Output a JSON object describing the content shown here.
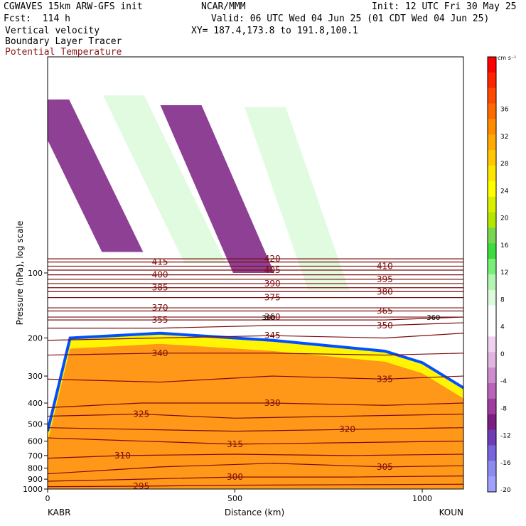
{
  "header": {
    "model": "CGWAVES 15km ARW-GFS init",
    "fcst": "Fcst:  114 h",
    "org": "NCAR/MMM",
    "init": "Init: 12 UTC Fri 30 May 25",
    "valid": "Valid: 06 UTC Wed 04 Jun 25 (01 CDT Wed 04 Jun 25)",
    "xy": "XY= 187.4,173.8 to 191.8,100.1",
    "fields": [
      "Vertical velocity",
      "Boundary Layer Tracer",
      "Potential Temperature"
    ]
  },
  "chart_data": {
    "type": "heatmap",
    "title": "",
    "xlabel": "Distance (km)",
    "ylabel": "Pressure (hPa), log scale",
    "x_ticks": [
      0,
      500,
      1000
    ],
    "xlim": [
      0,
      1110
    ],
    "y_ticks": [
      100,
      200,
      300,
      400,
      500,
      600,
      700,
      800,
      900,
      1000
    ],
    "ylim": [
      1000,
      10
    ],
    "y_scale": "log",
    "x_endpoints": {
      "left": "KABR",
      "right": "KOUN"
    },
    "colorbar": {
      "units": "cm s⁻¹",
      "labels": [
        36,
        32,
        28,
        24,
        20,
        16,
        12,
        8,
        4,
        0,
        -4,
        -8,
        -12,
        -16,
        -20
      ],
      "colors": [
        "#ff0000",
        "#ff2400",
        "#ff4800",
        "#ff6a00",
        "#ff8c00",
        "#ffaa00",
        "#ffc800",
        "#ffe600",
        "#ffff00",
        "#d8f000",
        "#b4e600",
        "#78d750",
        "#3cdc3c",
        "#78f078",
        "#b4f5b4",
        "#dcfadc",
        "#ffffff",
        "#ffffff",
        "#f0d2f0",
        "#e1b4e1",
        "#cd8ccd",
        "#b964b9",
        "#a03ca0",
        "#7a1e82",
        "#6e3cb4",
        "#7864dc",
        "#8c8cf0",
        "#a0a0ff"
      ]
    },
    "theta_contours": [
      {
        "label": "295",
        "points": [
          [
            0,
            975
          ],
          [
            250,
            970
          ],
          [
            500,
            960
          ],
          [
            800,
            955
          ],
          [
            1110,
            950
          ]
        ]
      },
      {
        "label": "300",
        "points": [
          [
            0,
            920
          ],
          [
            250,
            900
          ],
          [
            500,
            880
          ],
          [
            800,
            880
          ],
          [
            1110,
            870
          ]
        ]
      },
      {
        "label": "305",
        "points": [
          [
            0,
            850
          ],
          [
            300,
            790
          ],
          [
            600,
            760
          ],
          [
            900,
            790
          ],
          [
            1110,
            780
          ]
        ]
      },
      {
        "label": "310",
        "points": [
          [
            0,
            720
          ],
          [
            200,
            700
          ],
          [
            500,
            690
          ],
          [
            800,
            700
          ],
          [
            1110,
            690
          ]
        ]
      },
      {
        "label": "315",
        "points": [
          [
            0,
            580
          ],
          [
            250,
            600
          ],
          [
            500,
            620
          ],
          [
            800,
            610
          ],
          [
            1110,
            600
          ]
        ]
      },
      {
        "label": "320",
        "points": [
          [
            0,
            520
          ],
          [
            250,
            530
          ],
          [
            500,
            540
          ],
          [
            800,
            530
          ],
          [
            1110,
            520
          ]
        ]
      },
      {
        "label": "325",
        "points": [
          [
            0,
            460
          ],
          [
            250,
            450
          ],
          [
            500,
            470
          ],
          [
            800,
            460
          ],
          [
            1110,
            450
          ]
        ]
      },
      {
        "label": "330",
        "points": [
          [
            0,
            420
          ],
          [
            250,
            400
          ],
          [
            600,
            400
          ],
          [
            900,
            410
          ],
          [
            1110,
            400
          ]
        ]
      },
      {
        "label": "335",
        "points": [
          [
            0,
            310
          ],
          [
            300,
            320
          ],
          [
            600,
            300
          ],
          [
            900,
            310
          ],
          [
            1110,
            300
          ]
        ]
      },
      {
        "label": "340",
        "points": [
          [
            0,
            240
          ],
          [
            300,
            235
          ],
          [
            600,
            235
          ],
          [
            900,
            240
          ],
          [
            1110,
            235
          ]
        ]
      },
      {
        "label": "345",
        "points": [
          [
            0,
            205
          ],
          [
            300,
            200
          ],
          [
            600,
            195
          ],
          [
            900,
            200
          ],
          [
            1110,
            190
          ]
        ]
      },
      {
        "label": "350",
        "points": [
          [
            0,
            180
          ],
          [
            300,
            180
          ],
          [
            600,
            175
          ],
          [
            900,
            175
          ],
          [
            1110,
            170
          ]
        ]
      },
      {
        "label": "355",
        "points": [
          [
            0,
            165
          ],
          [
            300,
            165
          ],
          [
            600,
            165
          ],
          [
            900,
            165
          ],
          [
            1110,
            160
          ]
        ]
      },
      {
        "label": "360",
        "points": [
          [
            0,
            160
          ],
          [
            300,
            160
          ],
          [
            600,
            160
          ],
          [
            900,
            160
          ],
          [
            1110,
            160
          ]
        ]
      },
      {
        "label": "365",
        "points": [
          [
            0,
            150
          ],
          [
            300,
            150
          ],
          [
            600,
            150
          ],
          [
            900,
            150
          ],
          [
            1110,
            150
          ]
        ]
      },
      {
        "label": "370",
        "points": [
          [
            0,
            145
          ],
          [
            300,
            145
          ],
          [
            600,
            145
          ],
          [
            900,
            145
          ],
          [
            1110,
            145
          ]
        ]
      },
      {
        "label": "375",
        "points": [
          [
            0,
            130
          ],
          [
            300,
            130
          ],
          [
            600,
            130
          ],
          [
            900,
            130
          ],
          [
            1110,
            130
          ]
        ]
      },
      {
        "label": "380",
        "points": [
          [
            0,
            122
          ],
          [
            300,
            122
          ],
          [
            600,
            122
          ],
          [
            900,
            122
          ],
          [
            1110,
            122
          ]
        ]
      },
      {
        "label": "385",
        "points": [
          [
            0,
            117
          ],
          [
            300,
            117
          ],
          [
            600,
            117
          ],
          [
            900,
            117
          ],
          [
            1110,
            117
          ]
        ]
      },
      {
        "label": "390",
        "points": [
          [
            0,
            112
          ],
          [
            300,
            112
          ],
          [
            600,
            112
          ],
          [
            900,
            112
          ],
          [
            1110,
            112
          ]
        ]
      },
      {
        "label": "395",
        "points": [
          [
            0,
            107
          ],
          [
            300,
            107
          ],
          [
            600,
            107
          ],
          [
            900,
            107
          ],
          [
            1110,
            107
          ]
        ]
      },
      {
        "label": "400",
        "points": [
          [
            0,
            102
          ],
          [
            300,
            102
          ],
          [
            600,
            102
          ],
          [
            900,
            102
          ],
          [
            1110,
            102
          ]
        ]
      },
      {
        "label": "405",
        "points": [
          [
            0,
            97
          ],
          [
            300,
            97
          ],
          [
            600,
            97
          ],
          [
            900,
            97
          ],
          [
            1110,
            97
          ]
        ]
      },
      {
        "label": "410",
        "points": [
          [
            0,
            93
          ],
          [
            300,
            93
          ],
          [
            600,
            93
          ],
          [
            900,
            93
          ],
          [
            1110,
            93
          ]
        ]
      },
      {
        "label": "415",
        "points": [
          [
            0,
            89
          ],
          [
            300,
            89
          ],
          [
            600,
            89
          ],
          [
            900,
            89
          ],
          [
            1110,
            89
          ]
        ]
      },
      {
        "label": "420",
        "points": [
          [
            0,
            86
          ],
          [
            300,
            86
          ],
          [
            600,
            86
          ],
          [
            900,
            86
          ],
          [
            1110,
            86
          ]
        ]
      }
    ],
    "tracer_boundary_layer": [
      [
        0,
        540
      ],
      [
        60,
        200
      ],
      [
        300,
        190
      ],
      [
        600,
        205
      ],
      [
        900,
        230
      ],
      [
        1000,
        260
      ],
      [
        1110,
        340
      ]
    ],
    "velocity_bands": [
      {
        "value": -8,
        "center_x": 200,
        "p_top": 15,
        "p_bot": 80,
        "slope_km_per_decade": 280
      },
      {
        "value": 8,
        "center_x": 420,
        "p_top": 15,
        "p_bot": 90,
        "slope_km_per_decade": 280
      },
      {
        "value": -8,
        "center_x": 550,
        "p_top": 15,
        "p_bot": 100,
        "slope_km_per_decade": 250
      },
      {
        "value": 8,
        "center_x": 750,
        "p_top": 15,
        "p_bot": 120,
        "slope_km_per_decade": 200
      }
    ],
    "annotations": [
      {
        "text": "360",
        "x": 590,
        "p": 160
      },
      {
        "text": "360",
        "x": 1030,
        "p": 160
      }
    ]
  }
}
